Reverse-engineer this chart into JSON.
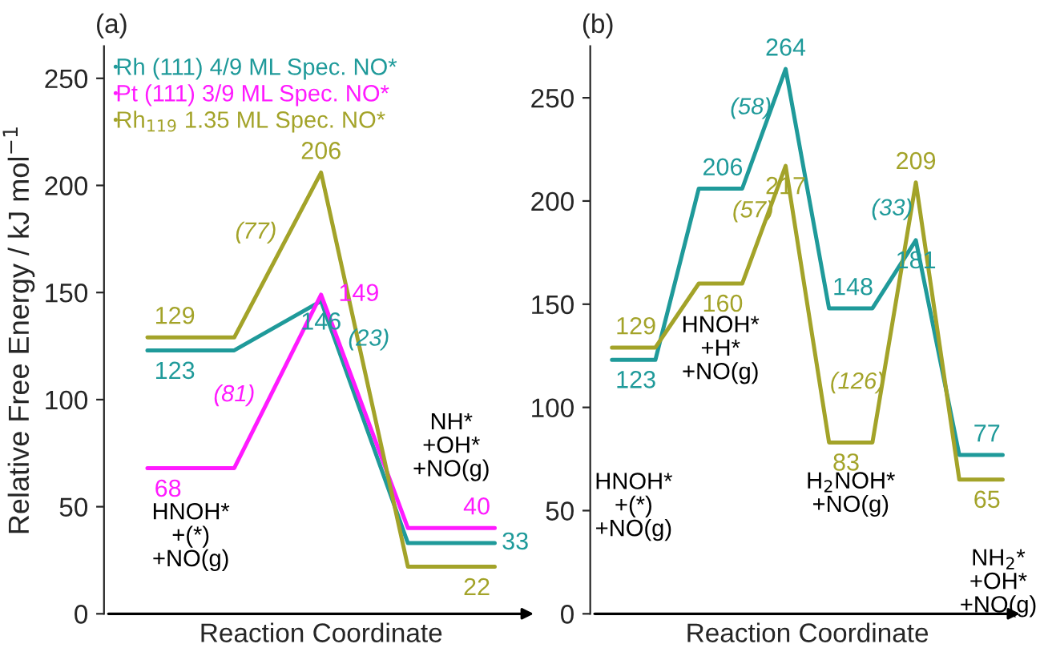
{
  "chart_data": [
    {
      "type": "line",
      "title": "(a)",
      "xlabel": "Reaction Coordinate",
      "ylabel": "Relative Free Energy / kJ mol$^{−1}$",
      "categories": [
        null,
        null,
        null,
        null,
        null
      ],
      "series": [
        {
          "name": "Rh (111) 4/9 ML Spec. NO*",
          "color": "#1f9a9a",
          "values": [
            123,
            123,
            146,
            33,
            33
          ],
          "value_labels": [
            "123",
            null,
            "146",
            null,
            "33"
          ]
        },
        {
          "name": "Pt (111) 3/9 ML Spec. NO*",
          "color": "#ff1aff",
          "values": [
            68,
            68,
            149,
            40,
            40
          ],
          "value_labels": [
            "68",
            null,
            "149",
            null,
            "40"
          ]
        },
        {
          "name": "Rh$_{119}$ 1.35 ML Spec. NO*",
          "color": "#a3a329",
          "values": [
            129,
            129,
            206,
            22,
            22
          ],
          "value_labels": [
            "129",
            null,
            "206",
            null,
            "22"
          ]
        }
      ],
      "annotations": [
        "(77)",
        "(23)",
        "(81)",
        "HNOH*\n+(*)\n+NO(g)",
        "NH*\n+OH*\n+NO(g)"
      ],
      "ylim": [
        0,
        265
      ],
      "yticks": [
        0,
        50,
        100,
        150,
        200,
        250
      ],
      "tick_labels": "y",
      "legend": "top left",
      "grid": false
    },
    {
      "type": "line",
      "title": "(b)",
      "xlabel": "Reaction Coordinate",
      "categories": [
        null,
        null,
        null,
        null,
        null,
        null,
        null,
        null,
        null,
        null
      ],
      "series": [
        {
          "color": "#1f9a9a",
          "values": [
            123,
            123,
            206,
            206,
            264,
            148,
            148,
            181,
            77,
            77
          ],
          "value_labels": [
            "123",
            null,
            "206",
            null,
            "264",
            "148",
            null,
            "181",
            null,
            "77"
          ]
        },
        {
          "color": "#a3a329",
          "values": [
            129,
            129,
            160,
            160,
            217,
            83,
            83,
            209,
            65,
            65
          ],
          "value_labels": [
            "129",
            null,
            "160",
            null,
            "217",
            "83",
            null,
            "209",
            null,
            "65"
          ]
        }
      ],
      "annotations": [
        "(58)",
        "(57)",
        "(33)",
        "(126)",
        "HNOH*\n+H*\n+NO(g)",
        "HNOH*\n+(*)\n+NO(g)",
        "H$_{2}$NOH*\n+NO(g)",
        "NH$_{2}$*\n+OH*\n+NO(g)"
      ],
      "ylim": [
        0,
        275
      ],
      "yticks": [
        0,
        50,
        100,
        150,
        200,
        250
      ],
      "tick_labels": "y",
      "grid": false
    }
  ]
}
